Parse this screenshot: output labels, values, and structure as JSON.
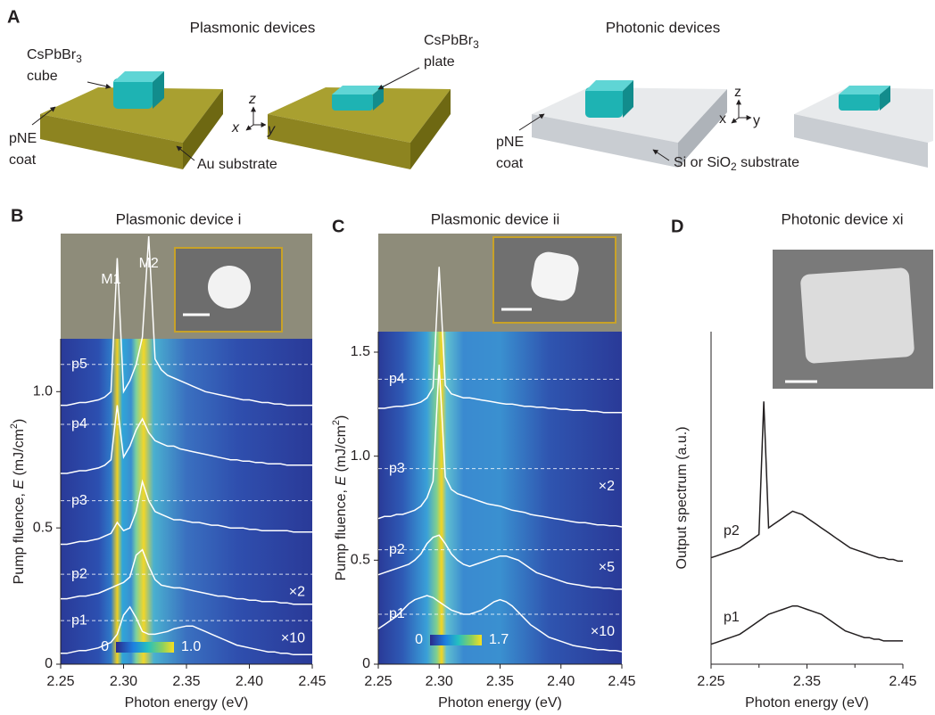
{
  "panel_a": {
    "label": "A",
    "plasmonic_title": "Plasmonic devices",
    "photonic_title": "Photonic devices",
    "cube_label": [
      "CsPbBr",
      "3",
      "cube"
    ],
    "plate_label": [
      "CsPbBr",
      "3",
      "plate"
    ],
    "pne_coat_1": [
      "pNE",
      "coat"
    ],
    "pne_coat_2": [
      "pNE",
      "coat"
    ],
    "au_substrate": "Au substrate",
    "si_substrate": [
      "Si or SiO",
      "2",
      " substrate"
    ],
    "axes_1": [
      "x",
      "y",
      "z"
    ],
    "axes_2": [
      "x",
      "y",
      "z"
    ]
  },
  "chart_data": [
    {
      "type": "line",
      "panel_label": "B",
      "title": "Plasmonic device i",
      "heatmap": true,
      "x_label": "Photon energy (eV)",
      "y_label": [
        "Pump fluence, ",
        "E",
        " (mJ/cm",
        "2",
        ")"
      ],
      "xlim": [
        2.25,
        2.45
      ],
      "xticks": [
        2.25,
        {
          "value": 2.3,
          "label": "2.30"
        },
        2.35,
        {
          "value": 2.4,
          "label": "2.40"
        },
        2.45
      ],
      "ylim": [
        0,
        1.58
      ],
      "yticks": [
        0,
        0.5,
        {
          "value": 1,
          "label": "1.0"
        }
      ],
      "colorbar_ticks": [
        0,
        {
          "value": 1,
          "label": "1.0"
        }
      ],
      "annotations": [
        {
          "text": "M1",
          "x": 2.29,
          "y": 1.41
        },
        {
          "text": "M2",
          "x": 2.32,
          "y": 1.47
        }
      ],
      "x": [
        2.25,
        2.255,
        2.26,
        2.265,
        2.27,
        2.275,
        2.28,
        2.285,
        2.29,
        2.295,
        2.3,
        2.305,
        2.31,
        2.315,
        2.32,
        2.325,
        2.33,
        2.335,
        2.34,
        2.345,
        2.35,
        2.355,
        2.36,
        2.365,
        2.37,
        2.375,
        2.38,
        2.385,
        2.39,
        2.395,
        2.4,
        2.405,
        2.41,
        2.415,
        2.42,
        2.425,
        2.43,
        2.435,
        2.44,
        2.445,
        2.45
      ],
      "series": [
        {
          "name": "p1",
          "color": "#ffffff",
          "fluence": 0.16,
          "scale_label": "×10",
          "values": [
            0.04,
            0.04,
            0.045,
            0.05,
            0.05,
            0.055,
            0.06,
            0.07,
            0.08,
            0.11,
            0.18,
            0.21,
            0.17,
            0.12,
            0.11,
            0.11,
            0.115,
            0.12,
            0.13,
            0.135,
            0.14,
            0.14,
            0.13,
            0.12,
            0.11,
            0.1,
            0.09,
            0.08,
            0.07,
            0.065,
            0.06,
            0.055,
            0.05,
            0.045,
            0.045,
            0.04,
            0.04,
            0.035,
            0.035,
            0.035,
            0.035
          ]
        },
        {
          "name": "p2",
          "color": "#ffffff",
          "fluence": 0.33,
          "scale_label": "×2",
          "values": [
            0.24,
            0.24,
            0.245,
            0.25,
            0.25,
            0.255,
            0.26,
            0.27,
            0.28,
            0.29,
            0.3,
            0.32,
            0.4,
            0.42,
            0.36,
            0.31,
            0.29,
            0.285,
            0.28,
            0.28,
            0.275,
            0.27,
            0.265,
            0.26,
            0.255,
            0.25,
            0.25,
            0.245,
            0.24,
            0.24,
            0.235,
            0.235,
            0.23,
            0.23,
            0.23,
            0.225,
            0.225,
            0.22,
            0.22,
            0.22,
            0.22
          ]
        },
        {
          "name": "p3",
          "color": "#ffffff",
          "fluence": 0.6,
          "values": [
            0.44,
            0.44,
            0.445,
            0.45,
            0.45,
            0.455,
            0.46,
            0.47,
            0.48,
            0.52,
            0.49,
            0.5,
            0.56,
            0.67,
            0.6,
            0.56,
            0.55,
            0.54,
            0.53,
            0.53,
            0.525,
            0.52,
            0.52,
            0.515,
            0.51,
            0.51,
            0.505,
            0.5,
            0.5,
            0.5,
            0.495,
            0.495,
            0.49,
            0.49,
            0.49,
            0.49,
            0.49,
            0.485,
            0.485,
            0.485,
            0.485
          ]
        },
        {
          "name": "p4",
          "color": "#ffffff",
          "fluence": 0.88,
          "values": [
            0.7,
            0.7,
            0.705,
            0.71,
            0.71,
            0.715,
            0.72,
            0.73,
            0.75,
            0.95,
            0.76,
            0.8,
            0.86,
            0.9,
            0.85,
            0.82,
            0.81,
            0.8,
            0.8,
            0.79,
            0.785,
            0.78,
            0.775,
            0.77,
            0.765,
            0.76,
            0.755,
            0.75,
            0.75,
            0.745,
            0.745,
            0.74,
            0.74,
            0.735,
            0.735,
            0.735,
            0.73,
            0.73,
            0.73,
            0.73,
            0.73
          ]
        },
        {
          "name": "p5",
          "color": "#ffffff",
          "fluence": 1.1,
          "values": [
            0.95,
            0.95,
            0.955,
            0.96,
            0.96,
            0.965,
            0.97,
            0.98,
            1.0,
            1.49,
            1.0,
            1.04,
            1.1,
            1.2,
            1.57,
            1.12,
            1.08,
            1.06,
            1.05,
            1.04,
            1.03,
            1.02,
            1.01,
            1.0,
            0.995,
            0.99,
            0.985,
            0.98,
            0.975,
            0.97,
            0.97,
            0.965,
            0.96,
            0.96,
            0.955,
            0.955,
            0.95,
            0.95,
            0.95,
            0.95,
            0.95
          ]
        }
      ]
    },
    {
      "type": "line",
      "panel_label": "C",
      "title": "Plasmonic device ii",
      "heatmap": true,
      "x_label": "Photon energy (eV)",
      "y_label": [
        "Pump fluence, ",
        "E",
        " (mJ/cm",
        "2",
        ")"
      ],
      "xlim": [
        2.25,
        2.45
      ],
      "xticks": [
        2.25,
        {
          "value": 2.3,
          "label": "2.30"
        },
        2.35,
        {
          "value": 2.4,
          "label": "2.40"
        },
        2.45
      ],
      "ylim": [
        0,
        2.07
      ],
      "yticks": [
        0,
        0.5,
        {
          "value": 1,
          "label": "1.0"
        },
        1.5
      ],
      "colorbar_ticks": [
        0,
        1.7
      ],
      "x": [
        2.25,
        2.255,
        2.26,
        2.265,
        2.27,
        2.275,
        2.28,
        2.285,
        2.29,
        2.295,
        2.3,
        2.305,
        2.31,
        2.315,
        2.32,
        2.325,
        2.33,
        2.335,
        2.34,
        2.345,
        2.35,
        2.355,
        2.36,
        2.365,
        2.37,
        2.375,
        2.38,
        2.385,
        2.39,
        2.395,
        2.4,
        2.405,
        2.41,
        2.415,
        2.42,
        2.425,
        2.43,
        2.435,
        2.44,
        2.445,
        2.45
      ],
      "series": [
        {
          "name": "p1",
          "color": "#ffffff",
          "fluence": 0.24,
          "scale_label": "×10",
          "values": [
            0.17,
            0.19,
            0.21,
            0.23,
            0.26,
            0.29,
            0.31,
            0.32,
            0.33,
            0.32,
            0.3,
            0.28,
            0.26,
            0.25,
            0.24,
            0.24,
            0.25,
            0.26,
            0.28,
            0.3,
            0.31,
            0.3,
            0.28,
            0.25,
            0.22,
            0.19,
            0.17,
            0.15,
            0.13,
            0.12,
            0.11,
            0.1,
            0.09,
            0.085,
            0.08,
            0.075,
            0.07,
            0.07,
            0.065,
            0.065,
            0.06
          ]
        },
        {
          "name": "p2",
          "color": "#ffffff",
          "fluence": 0.55,
          "scale_label": "×5",
          "values": [
            0.43,
            0.44,
            0.45,
            0.46,
            0.47,
            0.48,
            0.5,
            0.53,
            0.58,
            0.61,
            0.62,
            0.58,
            0.53,
            0.5,
            0.48,
            0.47,
            0.48,
            0.49,
            0.5,
            0.51,
            0.52,
            0.52,
            0.51,
            0.5,
            0.48,
            0.46,
            0.44,
            0.43,
            0.42,
            0.41,
            0.4,
            0.39,
            0.385,
            0.38,
            0.375,
            0.37,
            0.37,
            0.365,
            0.365,
            0.36,
            0.36
          ]
        },
        {
          "name": "p3",
          "color": "#ffffff",
          "fluence": 0.94,
          "scale_label": "×2",
          "values": [
            0.7,
            0.71,
            0.71,
            0.72,
            0.72,
            0.73,
            0.74,
            0.76,
            0.8,
            0.88,
            1.44,
            0.9,
            0.84,
            0.82,
            0.81,
            0.8,
            0.79,
            0.78,
            0.77,
            0.765,
            0.76,
            0.75,
            0.74,
            0.735,
            0.73,
            0.72,
            0.715,
            0.71,
            0.705,
            0.7,
            0.695,
            0.69,
            0.685,
            0.68,
            0.68,
            0.675,
            0.67,
            0.67,
            0.665,
            0.665,
            0.66
          ]
        },
        {
          "name": "p4",
          "color": "#ffffff",
          "fluence": 1.37,
          "values": [
            1.23,
            1.23,
            1.235,
            1.24,
            1.24,
            1.245,
            1.25,
            1.26,
            1.28,
            1.33,
            1.91,
            1.34,
            1.3,
            1.29,
            1.28,
            1.28,
            1.275,
            1.27,
            1.265,
            1.26,
            1.255,
            1.25,
            1.25,
            1.245,
            1.24,
            1.24,
            1.235,
            1.235,
            1.23,
            1.23,
            1.225,
            1.225,
            1.22,
            1.22,
            1.22,
            1.215,
            1.215,
            1.21,
            1.21,
            1.21,
            1.21
          ]
        }
      ]
    },
    {
      "type": "line",
      "panel_label": "D",
      "title": "Photonic device xi",
      "heatmap": false,
      "x_label": "Photon energy (eV)",
      "y_label": [
        "Output spectrum (a.u.)"
      ],
      "xlim": [
        2.25,
        2.45
      ],
      "xticks": [
        2.25,
        2.35,
        2.45
      ],
      "minor_xticks": [
        2.3,
        2.4
      ],
      "ylim": [
        0,
        1
      ],
      "x": [
        2.25,
        2.255,
        2.26,
        2.265,
        2.27,
        2.275,
        2.28,
        2.285,
        2.29,
        2.295,
        2.3,
        2.305,
        2.31,
        2.315,
        2.32,
        2.325,
        2.33,
        2.335,
        2.34,
        2.345,
        2.35,
        2.355,
        2.36,
        2.365,
        2.37,
        2.375,
        2.38,
        2.385,
        2.39,
        2.395,
        2.4,
        2.405,
        2.41,
        2.415,
        2.42,
        2.425,
        2.43,
        2.435,
        2.44,
        2.445,
        2.45
      ],
      "series": [
        {
          "name": "p1",
          "color": "#231f20",
          "values": [
            0.06,
            0.065,
            0.07,
            0.075,
            0.08,
            0.085,
            0.09,
            0.1,
            0.11,
            0.12,
            0.13,
            0.14,
            0.15,
            0.155,
            0.16,
            0.165,
            0.17,
            0.175,
            0.175,
            0.17,
            0.165,
            0.16,
            0.155,
            0.15,
            0.14,
            0.13,
            0.12,
            0.11,
            0.1,
            0.095,
            0.09,
            0.085,
            0.08,
            0.08,
            0.075,
            0.075,
            0.07,
            0.07,
            0.07,
            0.07,
            0.07
          ]
        },
        {
          "name": "p2",
          "color": "#231f20",
          "values": [
            0.32,
            0.325,
            0.33,
            0.335,
            0.34,
            0.345,
            0.35,
            0.36,
            0.37,
            0.38,
            0.39,
            0.79,
            0.41,
            0.42,
            0.43,
            0.44,
            0.45,
            0.46,
            0.455,
            0.45,
            0.44,
            0.43,
            0.42,
            0.41,
            0.4,
            0.39,
            0.38,
            0.37,
            0.36,
            0.35,
            0.345,
            0.34,
            0.335,
            0.33,
            0.325,
            0.32,
            0.32,
            0.315,
            0.315,
            0.31,
            0.31
          ]
        }
      ]
    }
  ]
}
